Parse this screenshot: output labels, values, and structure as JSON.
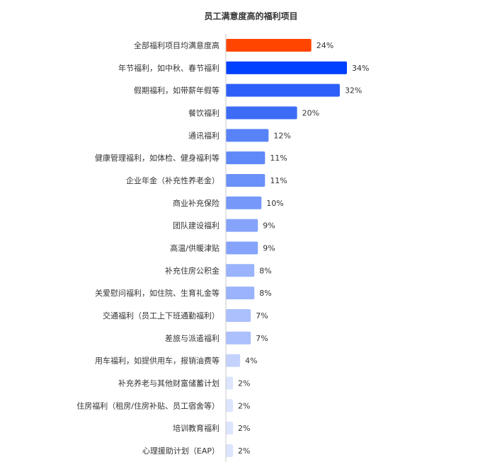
{
  "chart_data": {
    "type": "bar",
    "orientation": "horizontal",
    "title": "员工满意度高的福利项目",
    "xlabel": "",
    "ylabel": "",
    "xlim": [
      0,
      34
    ],
    "grid": false,
    "unit": "%",
    "categories": [
      "全部福利项目均满意度高",
      "年节福利，如中秋、春节福利",
      "假期福利，如带薪年假等",
      "餐饮福利",
      "通讯福利",
      "健康管理福利，如体检、健身福利等",
      "企业年金（补充性养老金）",
      "商业补充保险",
      "团队建设福利",
      "高温/供暖津贴",
      "补充住房公积金",
      "关爱慰问福利，如住院、生育礼金等",
      "交通福利（员工上下班通勤福利）",
      "差旅与派遣福利",
      "用车福利，如提供用车，报销油费等",
      "补充养老与其他财富储蓄计划",
      "住房福利（租房/住房补贴、员工宿舍等）",
      "培训教育福利",
      "心理援助计划（EAP）"
    ],
    "values": [
      24,
      34,
      32,
      20,
      12,
      11,
      11,
      10,
      9,
      9,
      8,
      8,
      7,
      7,
      4,
      2,
      2,
      2,
      2
    ],
    "value_labels": [
      "24%",
      "34%",
      "32%",
      "20%",
      "12%",
      "11%",
      "11%",
      "10%",
      "9%",
      "9%",
      "8%",
      "8%",
      "7%",
      "7%",
      "4%",
      "2%",
      "2%",
      "2%",
      "2%"
    ],
    "colors": [
      "#ff4500",
      "#0040ff",
      "#2d5ff8",
      "#3c6cf6",
      "#5883f8",
      "#5f88f9",
      "#6a90f9",
      "#7598fa",
      "#85a3fb",
      "#85a3fb",
      "#9ab3fc",
      "#9ab3fc",
      "#abc0fd",
      "#abc0fd",
      "#c3d2fd",
      "#dce4fe",
      "#dce4fe",
      "#dce4fe",
      "#dce4fe"
    ]
  }
}
